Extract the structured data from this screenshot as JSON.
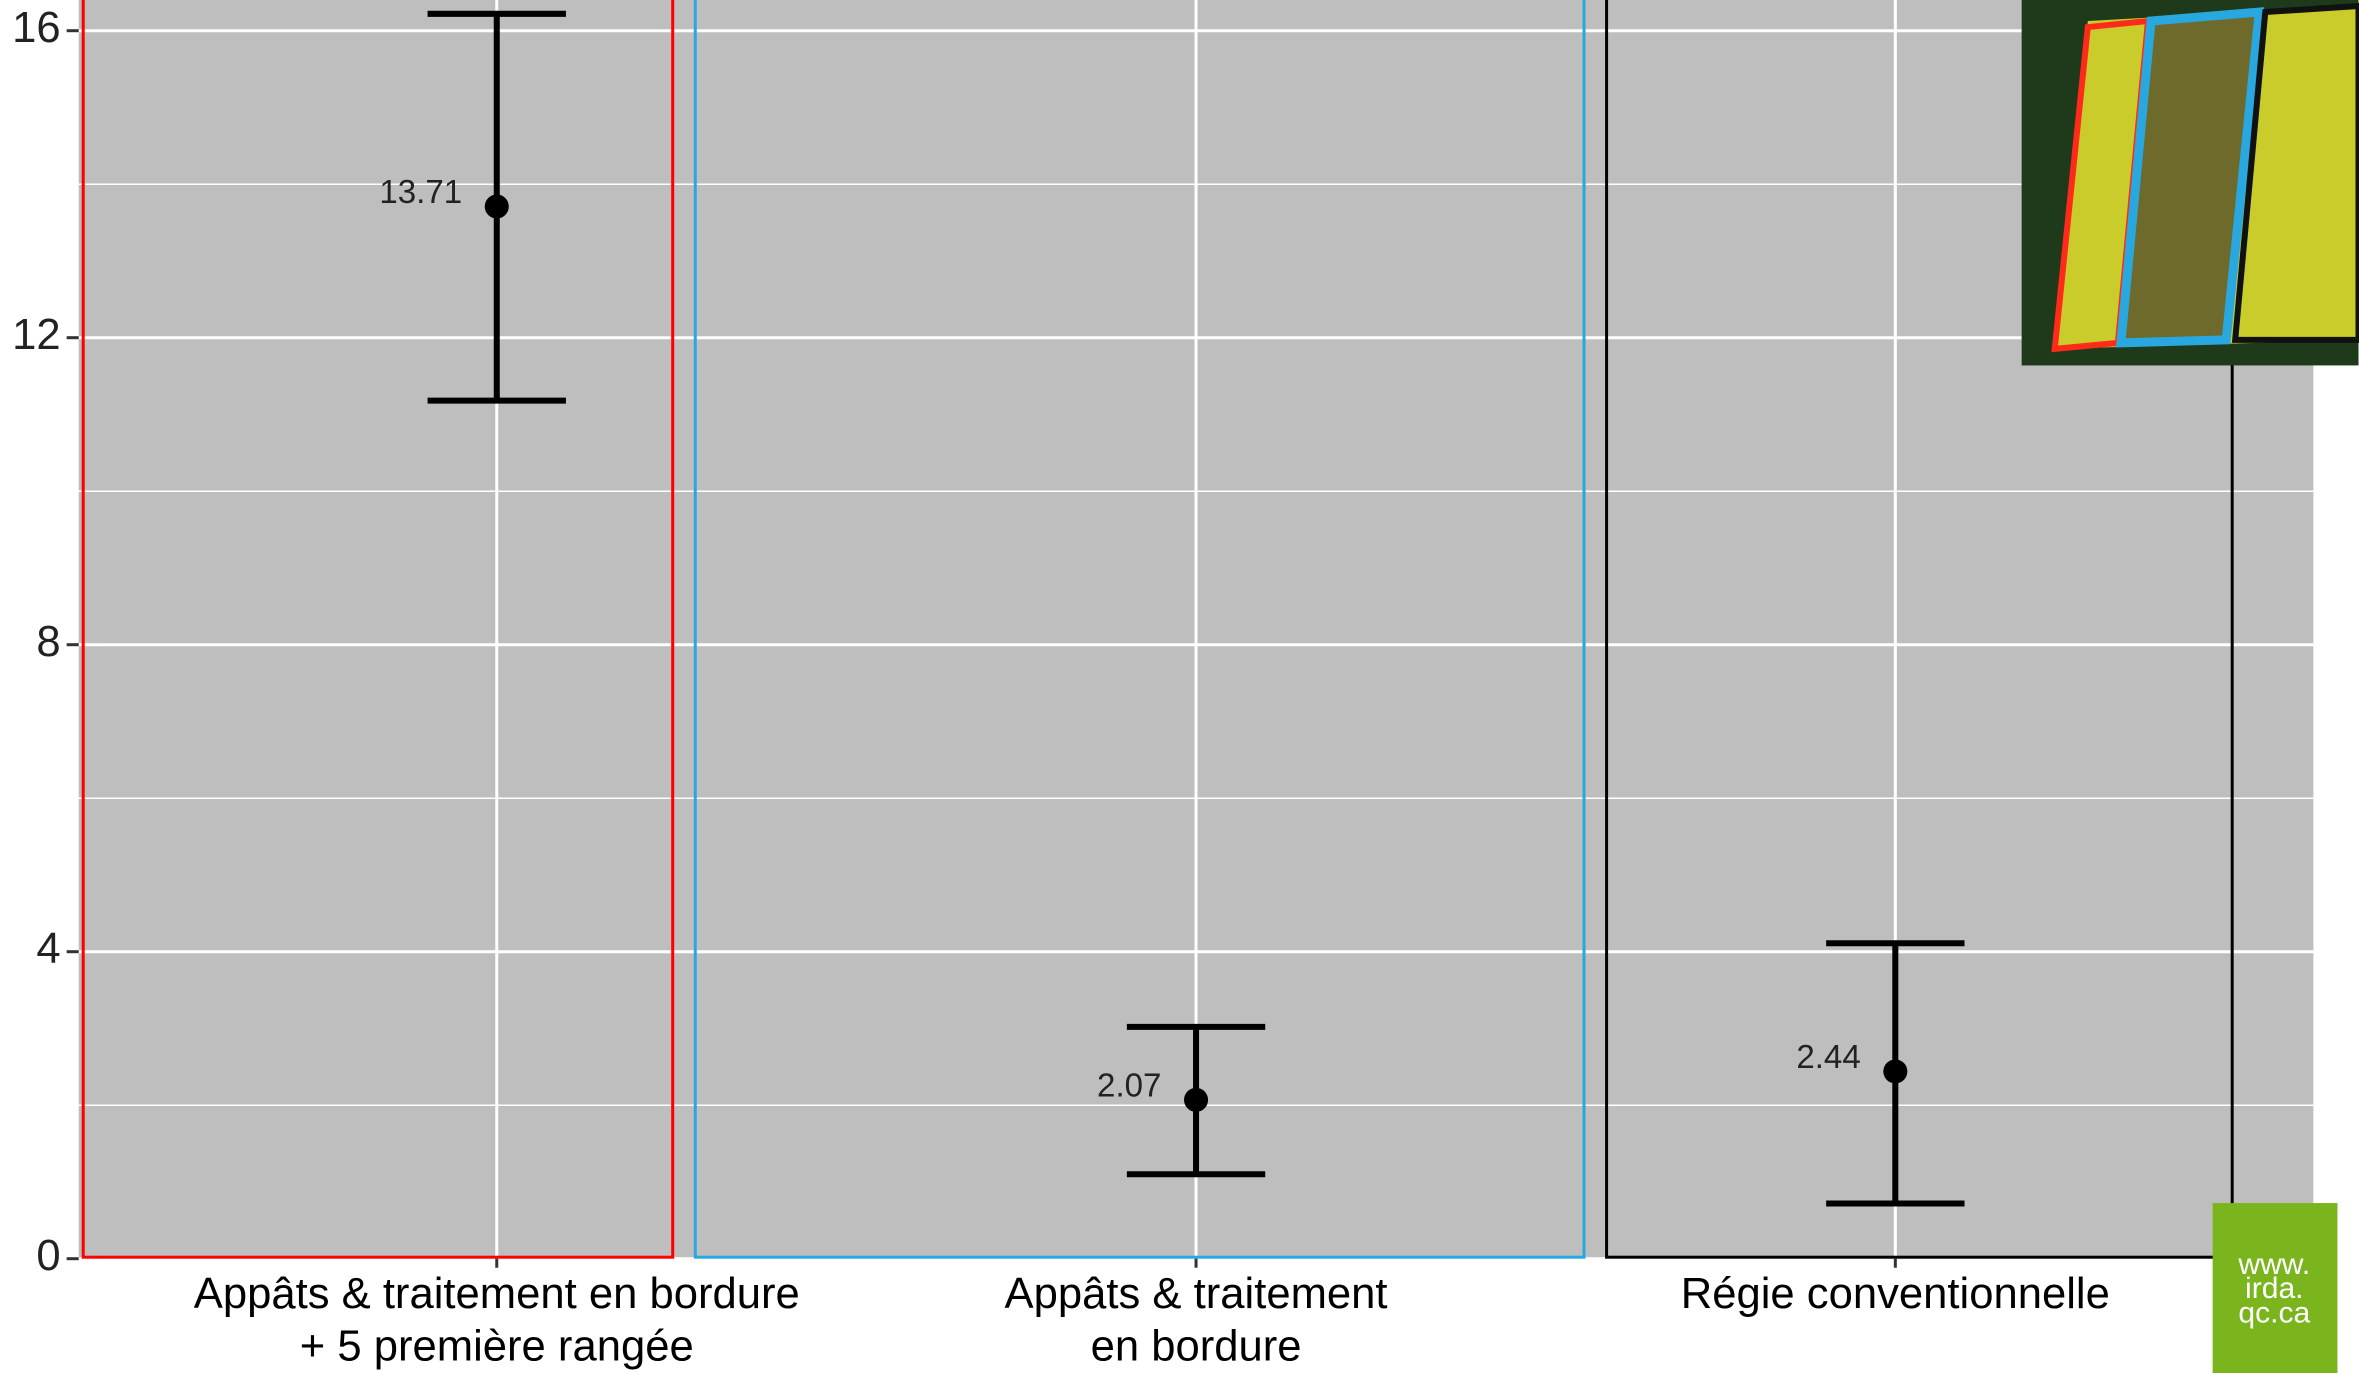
{
  "chart_data": {
    "type": "errorbar",
    "categories": [
      [
        "Appâts & traitement en bordure",
        "+ 5 première rangée"
      ],
      [
        "Appâts & traitement",
        "en bordure"
      ],
      [
        "Régie conventionnelle"
      ]
    ],
    "values": [
      13.71,
      2.07,
      2.44
    ],
    "lower": [
      11.18,
      1.1,
      0.72
    ],
    "upper": [
      16.22,
      3.02,
      4.11
    ],
    "color": "#000000",
    "box_colors": [
      "#ff0000",
      "#29a8e0",
      "#000000"
    ],
    "ylim": [
      0,
      16.4
    ],
    "yticks": [
      0,
      4,
      8,
      12,
      16
    ],
    "grid": true,
    "logo": [
      "www.",
      "irda.",
      "qc.ca"
    ]
  }
}
